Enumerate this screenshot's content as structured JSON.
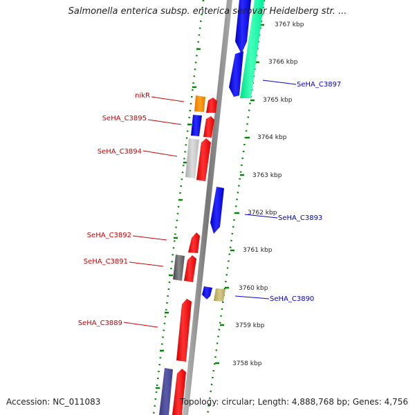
{
  "title": "Salmonella enterica subsp. enterica serovar Heidelberg str. ...",
  "accession": "Accession: NC_011083",
  "topology": "Topology: circular; Length: 4,888,768 bp; Genes: 4,756",
  "ticks": [
    "3767 kbp",
    "3766 kbp",
    "3765 kbp",
    "3764 kbp",
    "3763 kbp",
    "3762 kbp",
    "3761 kbp",
    "3760 kbp",
    "3759 kbp",
    "3758 kbp"
  ],
  "left_labels": [
    "nikR",
    "SeHA_C3895",
    "SeHA_C3894",
    "SeHA_C3892",
    "SeHA_C3891",
    "SeHA_C3889"
  ],
  "right_labels": [
    "SeHA_C3897",
    "SeHA_C3893",
    "SeHA_C3890"
  ],
  "colors": {
    "left_label": "#cc0000",
    "right_label": "#0000cc",
    "forward_cds": "#ff0000",
    "reverse_cds": "#0000ee",
    "rna": "#00ff99",
    "backbone": "#888888",
    "tick_ring": "#008800"
  }
}
